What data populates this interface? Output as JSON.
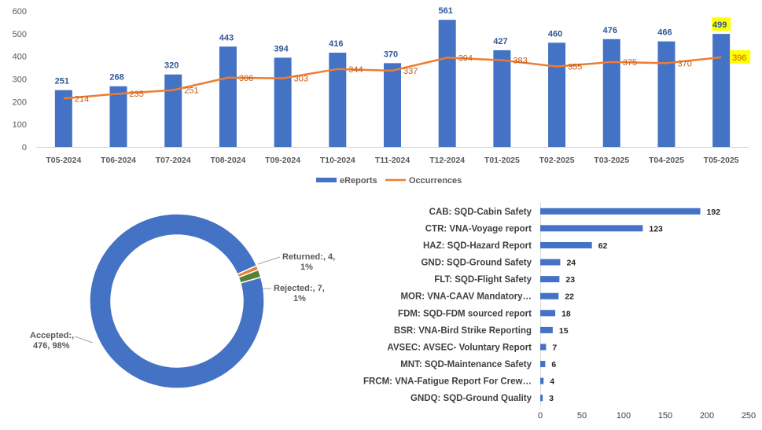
{
  "colors": {
    "bar": "#4472C4",
    "line": "#ED7D31",
    "axis_text": "#595959",
    "value_text": "#2F5597",
    "grid": "#D9D9D9",
    "highlight": "#FFFF00",
    "accepted": "#4472C4",
    "returned": "#ED7D31",
    "rejected": "#548235"
  },
  "chart_data": [
    {
      "type": "bar",
      "title": "",
      "xlabel": "",
      "ylabel": "",
      "ylim": [
        0,
        600
      ],
      "yticks": [
        0,
        100,
        200,
        300,
        400,
        500,
        600
      ],
      "categories": [
        "T05-2024",
        "T06-2024",
        "T07-2024",
        "T08-2024",
        "T09-2024",
        "T10-2024",
        "T11-2024",
        "T12-2024",
        "T01-2025",
        "T02-2025",
        "T03-2025",
        "T04-2025",
        "T05-2025"
      ],
      "series": [
        {
          "name": "eReports",
          "kind": "bar",
          "values": [
            251,
            268,
            320,
            443,
            394,
            416,
            370,
            561,
            427,
            460,
            476,
            466,
            499
          ]
        },
        {
          "name": "Occurrences",
          "kind": "line",
          "values": [
            214,
            235,
            251,
            306,
            303,
            344,
            337,
            394,
            383,
            355,
            375,
            370,
            396
          ]
        }
      ],
      "highlighted_labels": [
        "499",
        "396"
      ],
      "legend_position": "bottom",
      "grid": false
    },
    {
      "type": "pie",
      "title": "",
      "donut": true,
      "slices": [
        {
          "label": "Accepted:,",
          "value": 476,
          "percent_text": "476, 98%",
          "color_key": "accepted"
        },
        {
          "label": "Rejected:,",
          "value": 7,
          "percent_text": "7,",
          "percent_line": "1%",
          "color_key": "rejected"
        },
        {
          "label": "Returned:,",
          "value": 4,
          "percent_text": "4,",
          "percent_line": "1%",
          "color_key": "returned"
        }
      ]
    },
    {
      "type": "bar",
      "orientation": "horizontal",
      "title": "",
      "xlim": [
        0,
        250
      ],
      "xticks": [
        0,
        50,
        100,
        150,
        200,
        250
      ],
      "categories": [
        "CAB: SQD-Cabin Safety",
        "CTR: VNA-Voyage report",
        "HAZ: SQD-Hazard Report",
        "GND: SQD-Ground Safety",
        "FLT: SQD-Flight Safety",
        "MOR: VNA-CAAV Mandatory…",
        "FDM: SQD-FDM sourced report",
        "BSR: VNA-Bird Strike Reporting",
        "AVSEC: AVSEC- Voluntary Report",
        "MNT: SQD-Maintenance Safety",
        "FRCM: VNA-Fatigue Report For Crew…",
        "GNDQ: SQD-Ground Quality"
      ],
      "values": [
        192,
        123,
        62,
        24,
        23,
        22,
        18,
        15,
        7,
        6,
        4,
        3
      ]
    }
  ]
}
